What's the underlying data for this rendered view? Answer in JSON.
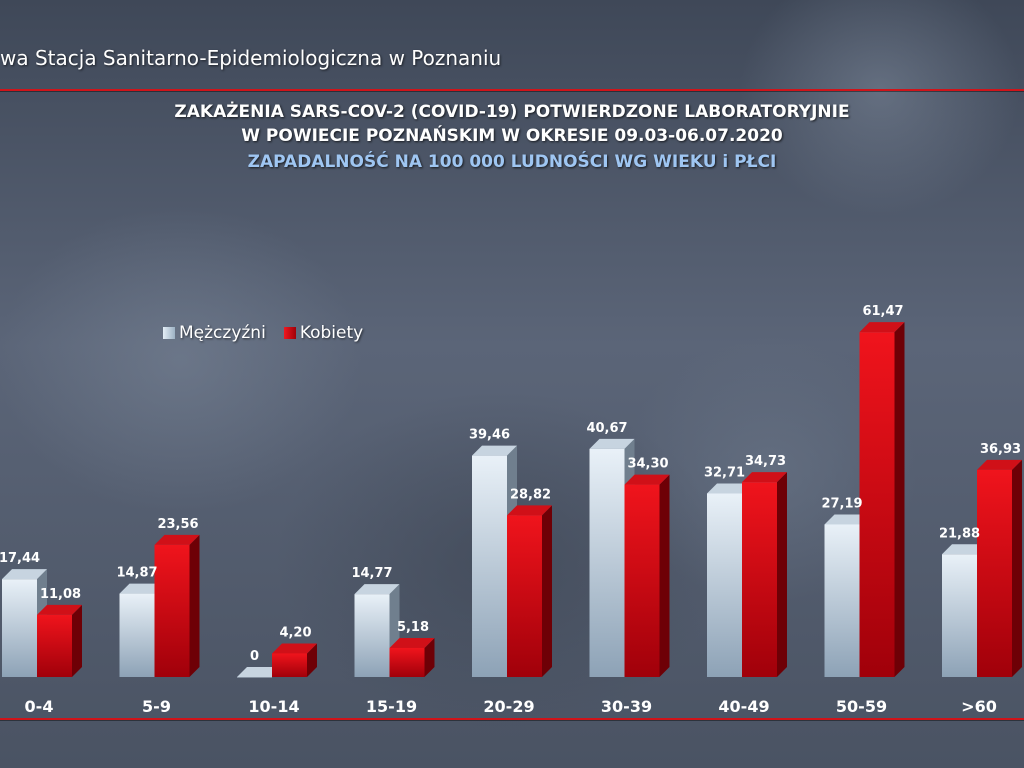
{
  "header": {
    "source": "wa Stacja Sanitarno-Epidemiologiczna w Poznaniu"
  },
  "chart_data": {
    "type": "bar",
    "title": "ZAKAŻENIA SARS-COV-2 (COVID-19) POTWIERDZONE LABORATORYJNIE",
    "title_line2": "W POWIECIE POZNAŃSKIM W OKRESIE 09.03-06.07.2020",
    "subtitle": "ZAPADALNOŚĆ NA 100 000 LUDNOŚCI WG WIEKU i PŁCI",
    "xlabel": "",
    "ylabel": "",
    "ylim": [
      0,
      62
    ],
    "grid": false,
    "legend_position": "top-left",
    "categories": [
      "0-4",
      "5-9",
      "10-14",
      "15-19",
      "20-29",
      "30-39",
      "40-49",
      "50-59",
      ">60"
    ],
    "series": [
      {
        "name": "Mężczyźni",
        "values": [
          17.44,
          14.87,
          0,
          14.77,
          39.46,
          40.67,
          32.71,
          27.19,
          21.88
        ],
        "labels": [
          "17,44",
          "14,87",
          "0",
          "14,77",
          "39,46",
          "40,67",
          "32,71",
          "27,19",
          "21,88"
        ]
      },
      {
        "name": "Kobiety",
        "values": [
          11.08,
          23.56,
          4.2,
          5.18,
          28.82,
          34.3,
          34.73,
          61.47,
          36.93
        ],
        "labels": [
          "11,08",
          "23,56",
          "4,20",
          "5,18",
          "28,82",
          "34,30",
          "34,73",
          "61,47",
          "36,93"
        ]
      }
    ],
    "colors": {
      "men_front_top": "#e9f1f8",
      "men_front_bottom": "#8da2b6",
      "men_side": "#707f8e",
      "men_top": "#c7d4e0",
      "women_front_top": "#f0141c",
      "women_front_bottom": "#a0000a",
      "women_side": "#6e0006",
      "women_top": "#d01018"
    }
  }
}
